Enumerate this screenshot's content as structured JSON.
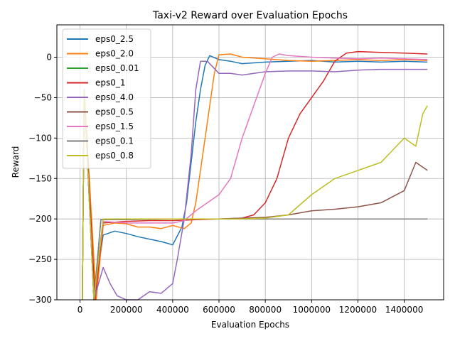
{
  "chart_data": {
    "type": "line",
    "title": "Taxi-v2 Reward over Evaluation Epochs",
    "xlabel": "Evaluation Epochs",
    "ylabel": "Reward",
    "xlim": [
      -100000,
      1570000
    ],
    "ylim": [
      -300,
      40
    ],
    "x_ticks": [
      0,
      200000,
      400000,
      600000,
      800000,
      1000000,
      1200000,
      1400000
    ],
    "x_tick_labels": [
      "0",
      "200000",
      "400000",
      "600000",
      "800000",
      "1000000",
      "1200000",
      "1400000"
    ],
    "y_ticks": [
      0,
      -50,
      -100,
      -150,
      -200,
      -250,
      -300
    ],
    "y_tick_labels": [
      "0",
      "−50",
      "−100",
      "−150",
      "−200",
      "−250",
      "−300"
    ],
    "grid": true,
    "legend_position": "upper-left",
    "series": [
      {
        "name": "eps0_2.5",
        "color": "#1f77b4",
        "x": [
          10000,
          18000,
          60000,
          100000,
          150000,
          200000,
          250000,
          300000,
          350000,
          400000,
          440000,
          460000,
          480000,
          500000,
          520000,
          540000,
          560000,
          600000,
          650000,
          700000,
          800000,
          900000,
          1000000,
          1100000,
          1200000,
          1300000,
          1400000,
          1500000
        ],
        "y": [
          -300,
          -40,
          -300,
          -220,
          -215,
          -218,
          -222,
          -225,
          -228,
          -232,
          -210,
          -180,
          -130,
          -80,
          -40,
          -10,
          2,
          -3,
          -5,
          -8,
          -6,
          -5,
          -4,
          -6,
          -5,
          -6,
          -5,
          -6
        ]
      },
      {
        "name": "eps0_2.0",
        "color": "#ff7f0e",
        "x": [
          10000,
          18000,
          70000,
          100000,
          150000,
          200000,
          250000,
          300000,
          350000,
          400000,
          450000,
          480000,
          500000,
          520000,
          540000,
          560000,
          580000,
          600000,
          650000,
          700000,
          800000,
          900000,
          1000000,
          1100000,
          1200000,
          1300000,
          1400000,
          1500000
        ],
        "y": [
          -300,
          -40,
          -300,
          -208,
          -205,
          -206,
          -210,
          -210,
          -212,
          -208,
          -212,
          -205,
          -180,
          -140,
          -100,
          -60,
          -20,
          3,
          4,
          0,
          -2,
          -4,
          -5,
          -4,
          -3,
          -4,
          -3,
          -4
        ]
      },
      {
        "name": "eps0_0.01",
        "color": "#2ca02c",
        "x": [
          10000,
          18000,
          60000,
          90000,
          200000,
          400000,
          600000,
          800000,
          1000000,
          1200000,
          1400000,
          1500000
        ],
        "y": [
          -300,
          -40,
          -300,
          -201,
          -200,
          -200,
          -200,
          -200,
          -200,
          -200,
          -200,
          -200
        ]
      },
      {
        "name": "eps0_1",
        "color": "#d62728",
        "x": [
          10000,
          18000,
          65000,
          100000,
          200000,
          300000,
          400000,
          500000,
          600000,
          700000,
          750000,
          800000,
          850000,
          900000,
          950000,
          1000000,
          1050000,
          1100000,
          1150000,
          1200000,
          1300000,
          1400000,
          1500000
        ],
        "y": [
          -300,
          -40,
          -300,
          -205,
          -203,
          -202,
          -202,
          -201,
          -200,
          -199,
          -195,
          -180,
          -150,
          -100,
          -70,
          -50,
          -30,
          -5,
          5,
          7,
          6,
          5,
          4
        ]
      },
      {
        "name": "eps0_4.0",
        "color": "#9467bd",
        "x": [
          10000,
          18000,
          60000,
          100000,
          130000,
          160000,
          200000,
          250000,
          300000,
          350000,
          400000,
          420000,
          450000,
          480000,
          500000,
          520000,
          550000,
          600000,
          650000,
          700000,
          800000,
          900000,
          1000000,
          1100000,
          1200000,
          1300000,
          1400000,
          1500000
        ],
        "y": [
          -300,
          -40,
          -300,
          -260,
          -280,
          -295,
          -300,
          -300,
          -290,
          -292,
          -280,
          -250,
          -200,
          -120,
          -40,
          -5,
          -5,
          -20,
          -20,
          -22,
          -18,
          -17,
          -17,
          -18,
          -16,
          -15,
          -15,
          -15
        ]
      },
      {
        "name": "eps0_0.5",
        "color": "#8c564b",
        "x": [
          10000,
          18000,
          60000,
          100000,
          200000,
          400000,
          600000,
          800000,
          900000,
          1000000,
          1100000,
          1200000,
          1300000,
          1400000,
          1450000,
          1500000
        ],
        "y": [
          -300,
          -40,
          -300,
          -200,
          -200,
          -200,
          -200,
          -198,
          -195,
          -190,
          -188,
          -185,
          -180,
          -165,
          -130,
          -140
        ]
      },
      {
        "name": "eps0_1.5",
        "color": "#e377c2",
        "x": [
          10000,
          18000,
          60000,
          100000,
          200000,
          300000,
          400000,
          450000,
          500000,
          550000,
          600000,
          650000,
          700000,
          750000,
          800000,
          830000,
          860000,
          900000,
          1000000,
          1100000,
          1200000,
          1300000,
          1400000,
          1500000
        ],
        "y": [
          -300,
          -40,
          -300,
          -203,
          -205,
          -205,
          -205,
          -202,
          -190,
          -180,
          -170,
          -150,
          -100,
          -60,
          -20,
          0,
          4,
          2,
          0,
          -1,
          -2,
          -1,
          -2,
          -3
        ]
      },
      {
        "name": "eps0_0.1",
        "color": "#7f7f7f",
        "x": [
          10000,
          18000,
          60000,
          90000,
          200000,
          400000,
          600000,
          800000,
          1000000,
          1200000,
          1400000,
          1500000
        ],
        "y": [
          -300,
          -40,
          -300,
          -201,
          -201,
          -200,
          -200,
          -200,
          -200,
          -200,
          -200,
          -200
        ]
      },
      {
        "name": "eps0_0.8",
        "color": "#bcbd22",
        "x": [
          10000,
          18000,
          60000,
          100000,
          200000,
          400000,
          600000,
          700000,
          800000,
          900000,
          1000000,
          1100000,
          1200000,
          1300000,
          1400000,
          1450000,
          1480000,
          1500000
        ],
        "y": [
          -300,
          -40,
          -300,
          -200,
          -200,
          -200,
          -200,
          -200,
          -199,
          -195,
          -170,
          -150,
          -140,
          -130,
          -100,
          -110,
          -70,
          -60
        ]
      }
    ]
  }
}
